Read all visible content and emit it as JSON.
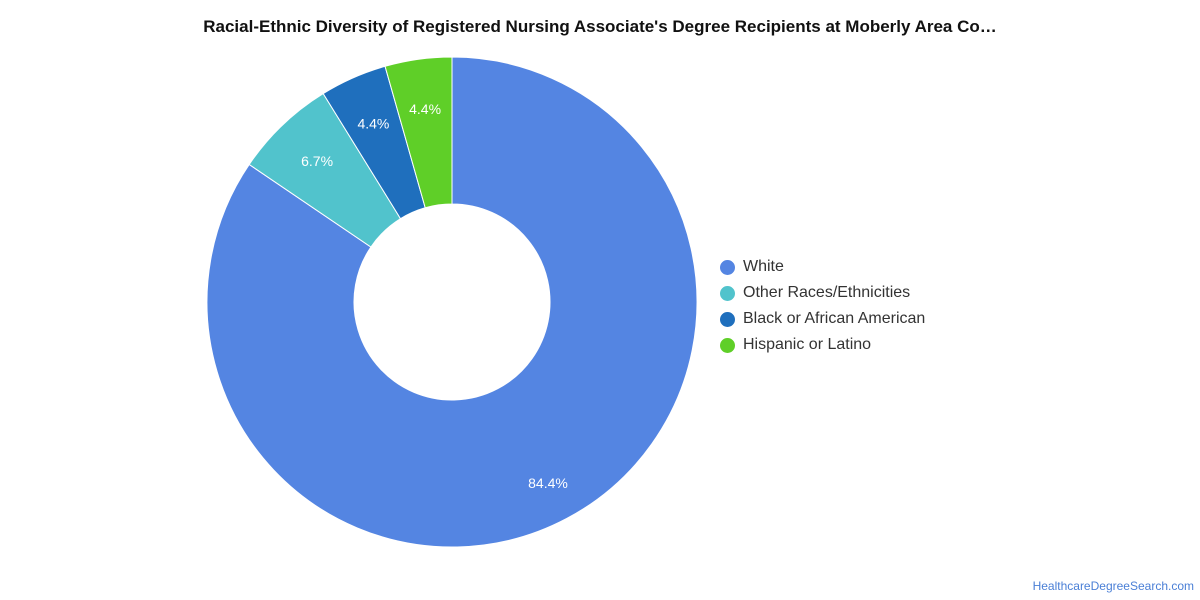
{
  "chart_data": {
    "type": "pie",
    "title": "Racial-Ethnic Diversity of Registered Nursing Associate's Degree Recipients at Moberly Area Co…",
    "donut": true,
    "legend_position": "right",
    "slices": [
      {
        "label": "White",
        "value": 84.4,
        "value_label": "84.4%",
        "color": "#5485e2"
      },
      {
        "label": "Other Races/Ethnicities",
        "value": 6.7,
        "value_label": "6.7%",
        "color": "#51c3cc"
      },
      {
        "label": "Black or African American",
        "value": 4.4,
        "value_label": "4.4%",
        "color": "#1f6fbd"
      },
      {
        "label": "Hispanic or Latino",
        "value": 4.4,
        "value_label": "4.4%",
        "color": "#5fcf28"
      }
    ]
  },
  "watermark": "HealthcareDegreeSearch.com"
}
